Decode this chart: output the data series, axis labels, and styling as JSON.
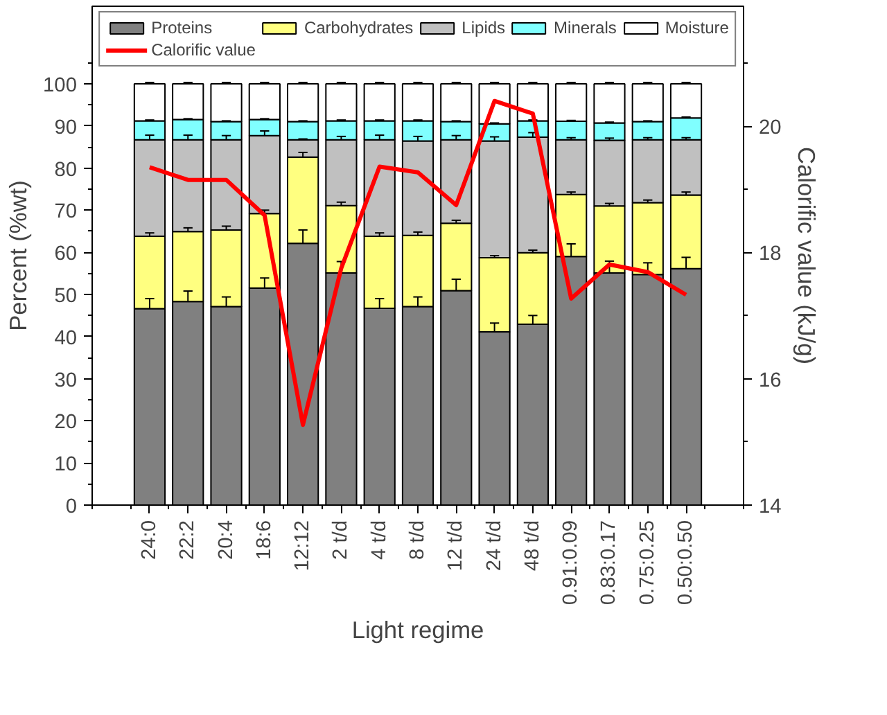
{
  "chart_data": {
    "type": "bar",
    "stacked": true,
    "xlabel": "Light regime",
    "ylabel": "Percent (%wt)",
    "y2label": "Calorific value (kJ/g)",
    "categories": [
      "24:0",
      "22:2",
      "20:4",
      "18:6",
      "12:12",
      "2 t/d",
      "4 t/d",
      "8 t/d",
      "12 t/d",
      "24 t/d",
      "48 t/d",
      "0.91:0.09",
      "0.83:0.17",
      "0.75:0.25",
      "0.50:0.50"
    ],
    "series": [
      {
        "name": "Proteins",
        "color": "#808080",
        "values": [
          46.6,
          48.3,
          47.1,
          51.5,
          62.1,
          55.1,
          46.7,
          47.1,
          50.9,
          41.1,
          42.9,
          59.0,
          55.1,
          54.7,
          56.1
        ],
        "errors": [
          2.4,
          2.5,
          2.3,
          2.4,
          3.2,
          2.7,
          2.3,
          2.3,
          2.7,
          2.1,
          2.1,
          3.0,
          2.8,
          2.8,
          2.7
        ]
      },
      {
        "name": "Carbohydrates",
        "color": "#ffff80",
        "values": [
          17.2,
          16.6,
          18.2,
          17.7,
          20.5,
          16.0,
          17.1,
          16.9,
          16.0,
          17.6,
          17.0,
          14.7,
          15.9,
          17.1,
          17.5
        ],
        "errors": [
          0.8,
          0.9,
          0.9,
          0.8,
          1.1,
          0.8,
          0.8,
          0.8,
          0.7,
          0.5,
          0.6,
          0.6,
          0.6,
          0.6,
          0.7
        ]
      },
      {
        "name": "Lipids",
        "color": "#c0c0c0",
        "values": [
          22.9,
          21.8,
          21.4,
          18.5,
          4.1,
          15.6,
          22.9,
          22.4,
          19.8,
          27.7,
          27.4,
          13.0,
          15.6,
          14.9,
          13.1
        ],
        "errors": [
          1.1,
          1.1,
          1.0,
          1.1,
          0.2,
          0.8,
          1.1,
          1.1,
          1.0,
          1.0,
          1.1,
          0.5,
          0.5,
          0.5,
          0.5
        ]
      },
      {
        "name": "Minerals",
        "color": "#80ffff",
        "values": [
          4.5,
          4.8,
          4.3,
          3.8,
          4.3,
          4.5,
          4.5,
          4.8,
          4.3,
          4.1,
          3.9,
          4.4,
          4.1,
          4.3,
          5.2
        ],
        "errors": [
          0.2,
          0.2,
          0.2,
          0.2,
          0.2,
          0.2,
          0.2,
          0.2,
          0.2,
          0.2,
          0.2,
          0.2,
          0.2,
          0.2,
          0.2
        ]
      },
      {
        "name": "Moisture",
        "color": "#ffffff",
        "values": [
          8.8,
          8.5,
          9.0,
          8.5,
          9.0,
          8.8,
          8.8,
          8.8,
          9.0,
          9.5,
          8.8,
          8.9,
          9.3,
          9.0,
          8.1
        ],
        "errors": [
          0.3,
          0.3,
          0.3,
          0.3,
          0.3,
          0.3,
          0.3,
          0.3,
          0.3,
          0.3,
          0.3,
          0.3,
          0.3,
          0.3,
          0.3
        ]
      },
      {
        "name": "Calorific value",
        "type": "line",
        "axis": "y2",
        "color": "#ff0000",
        "values": [
          19.35,
          19.15,
          19.15,
          18.59,
          15.27,
          17.75,
          19.36,
          19.27,
          18.75,
          20.4,
          20.2,
          17.27,
          17.81,
          17.69,
          17.33
        ]
      }
    ],
    "ylim": [
      0,
      118.4
    ],
    "yticks": [
      0,
      10,
      20,
      30,
      40,
      50,
      60,
      70,
      80,
      90,
      100
    ],
    "y2lim": [
      14,
      21.9
    ],
    "y2ticks": [
      14,
      16,
      18,
      20
    ],
    "legend": "top",
    "grid": false
  }
}
